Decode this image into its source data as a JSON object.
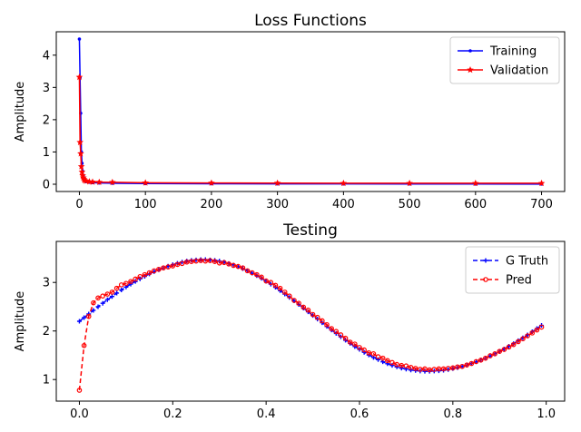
{
  "chart_data": [
    {
      "type": "line",
      "title": "Loss Functions",
      "xlabel": "",
      "ylabel": "Amplitude",
      "xlim": [
        -35,
        735
      ],
      "ylim": [
        -0.225,
        4.725
      ],
      "xticks": [
        0,
        100,
        200,
        300,
        400,
        500,
        600,
        700
      ],
      "yticks": [
        0,
        1,
        2,
        3,
        4
      ],
      "grid": false,
      "legend_position": "top-right",
      "series": [
        {
          "name": "Training",
          "color": "#0000ff",
          "marker": "dot",
          "points": [
            [
              0,
              4.5
            ],
            [
              1,
              3.3
            ],
            [
              2,
              2.2
            ],
            [
              3,
              1.0
            ],
            [
              4,
              0.65
            ],
            [
              5,
              0.4
            ],
            [
              6,
              0.27
            ],
            [
              7,
              0.18
            ],
            [
              8,
              0.12
            ],
            [
              10,
              0.08
            ],
            [
              15,
              0.06
            ],
            [
              20,
              0.05
            ],
            [
              30,
              0.04
            ],
            [
              50,
              0.03
            ],
            [
              100,
              0.02
            ],
            [
              200,
              0.015
            ],
            [
              300,
              0.012
            ],
            [
              400,
              0.01
            ],
            [
              500,
              0.008
            ],
            [
              600,
              0.006
            ],
            [
              700,
              0.005
            ]
          ]
        },
        {
          "name": "Validation",
          "color": "#ff0000",
          "marker": "star",
          "points": [
            [
              0,
              3.32
            ],
            [
              1,
              1.3
            ],
            [
              2,
              0.95
            ],
            [
              3,
              0.55
            ],
            [
              4,
              0.38
            ],
            [
              5,
              0.27
            ],
            [
              6,
              0.2
            ],
            [
              7,
              0.15
            ],
            [
              8,
              0.12
            ],
            [
              10,
              0.1
            ],
            [
              15,
              0.08
            ],
            [
              20,
              0.07
            ],
            [
              30,
              0.065
            ],
            [
              50,
              0.06
            ],
            [
              100,
              0.045
            ],
            [
              200,
              0.04
            ],
            [
              300,
              0.035
            ],
            [
              400,
              0.03
            ],
            [
              500,
              0.03
            ],
            [
              600,
              0.03
            ],
            [
              700,
              0.03
            ]
          ]
        }
      ]
    },
    {
      "type": "line",
      "title": "Testing",
      "xlabel": "",
      "ylabel": "Amplitude",
      "xlim": [
        -0.0495,
        1.0395
      ],
      "ylim": [
        0.555,
        3.845
      ],
      "xticks": [
        0.0,
        0.2,
        0.4,
        0.6,
        0.8,
        1.0
      ],
      "xtick_labels": [
        "0.0",
        "0.2",
        "0.4",
        "0.6",
        "0.8",
        "1.0"
      ],
      "yticks": [
        1,
        2,
        3
      ],
      "grid": false,
      "legend_position": "top-right",
      "series": [
        {
          "name": "G Truth",
          "color": "#0000ff",
          "style": "dashed",
          "marker": "plus",
          "x": [
            0.0,
            0.01,
            0.02,
            0.03,
            0.04,
            0.05,
            0.06,
            0.07,
            0.08,
            0.09,
            0.1,
            0.11,
            0.12,
            0.13,
            0.14,
            0.15,
            0.16,
            0.17,
            0.18,
            0.19,
            0.2,
            0.21,
            0.22,
            0.23,
            0.24,
            0.25,
            0.26,
            0.27,
            0.28,
            0.29,
            0.3,
            0.31,
            0.32,
            0.33,
            0.34,
            0.35,
            0.36,
            0.37,
            0.38,
            0.39,
            0.4,
            0.41,
            0.42,
            0.43,
            0.44,
            0.45,
            0.46,
            0.47,
            0.48,
            0.49,
            0.5,
            0.51,
            0.52,
            0.53,
            0.54,
            0.55,
            0.56,
            0.57,
            0.58,
            0.59,
            0.6,
            0.61,
            0.62,
            0.63,
            0.64,
            0.65,
            0.66,
            0.67,
            0.68,
            0.69,
            0.7,
            0.71,
            0.72,
            0.73,
            0.74,
            0.75,
            0.76,
            0.77,
            0.78,
            0.79,
            0.8,
            0.81,
            0.82,
            0.83,
            0.84,
            0.85,
            0.86,
            0.87,
            0.88,
            0.89,
            0.9,
            0.91,
            0.92,
            0.93,
            0.94,
            0.95,
            0.96,
            0.97,
            0.98,
            0.99
          ],
          "y": [
            2.2,
            2.275,
            2.35,
            2.425,
            2.5,
            2.57,
            2.645,
            2.71,
            2.78,
            2.845,
            2.905,
            2.965,
            3.02,
            3.075,
            3.125,
            3.175,
            3.22,
            3.26,
            3.3,
            3.335,
            3.365,
            3.395,
            3.42,
            3.44,
            3.455,
            3.465,
            3.47,
            3.47,
            3.465,
            3.455,
            3.44,
            3.42,
            3.39,
            3.36,
            3.325,
            3.285,
            3.24,
            3.19,
            3.14,
            3.085,
            3.025,
            2.965,
            2.9,
            2.83,
            2.76,
            2.69,
            2.62,
            2.545,
            2.47,
            2.395,
            2.32,
            2.245,
            2.17,
            2.095,
            2.02,
            1.95,
            1.88,
            1.81,
            1.745,
            1.68,
            1.62,
            1.56,
            1.505,
            1.455,
            1.41,
            1.365,
            1.325,
            1.29,
            1.26,
            1.235,
            1.215,
            1.195,
            1.185,
            1.175,
            1.17,
            1.17,
            1.175,
            1.18,
            1.19,
            1.205,
            1.225,
            1.245,
            1.27,
            1.3,
            1.33,
            1.365,
            1.4,
            1.44,
            1.485,
            1.53,
            1.58,
            1.63,
            1.685,
            1.74,
            1.8,
            1.86,
            1.92,
            1.985,
            2.05,
            2.115
          ]
        },
        {
          "name": "Pred",
          "color": "#ff0000",
          "style": "dashed",
          "marker": "circle",
          "x": [
            0.0,
            0.01,
            0.02,
            0.03,
            0.04,
            0.05,
            0.06,
            0.07,
            0.08,
            0.09,
            0.1,
            0.11,
            0.12,
            0.13,
            0.14,
            0.15,
            0.16,
            0.17,
            0.18,
            0.19,
            0.2,
            0.21,
            0.22,
            0.23,
            0.24,
            0.25,
            0.26,
            0.27,
            0.28,
            0.29,
            0.3,
            0.31,
            0.32,
            0.33,
            0.34,
            0.35,
            0.36,
            0.37,
            0.38,
            0.39,
            0.4,
            0.41,
            0.42,
            0.43,
            0.44,
            0.45,
            0.46,
            0.47,
            0.48,
            0.49,
            0.5,
            0.51,
            0.52,
            0.53,
            0.54,
            0.55,
            0.56,
            0.57,
            0.58,
            0.59,
            0.6,
            0.61,
            0.62,
            0.63,
            0.64,
            0.65,
            0.66,
            0.67,
            0.68,
            0.69,
            0.7,
            0.71,
            0.72,
            0.73,
            0.74,
            0.75,
            0.76,
            0.77,
            0.78,
            0.79,
            0.8,
            0.81,
            0.82,
            0.83,
            0.84,
            0.85,
            0.86,
            0.87,
            0.88,
            0.89,
            0.9,
            0.91,
            0.92,
            0.93,
            0.94,
            0.95,
            0.96,
            0.97,
            0.98,
            0.99
          ],
          "y": [
            0.78,
            1.7,
            2.3,
            2.58,
            2.68,
            2.72,
            2.76,
            2.8,
            2.88,
            2.95,
            2.98,
            3.02,
            3.07,
            3.12,
            3.16,
            3.2,
            3.24,
            3.27,
            3.3,
            3.32,
            3.34,
            3.37,
            3.39,
            3.42,
            3.43,
            3.44,
            3.45,
            3.44,
            3.45,
            3.43,
            3.4,
            3.41,
            3.38,
            3.35,
            3.33,
            3.3,
            3.24,
            3.2,
            3.16,
            3.11,
            3.03,
            3.0,
            2.94,
            2.88,
            2.8,
            2.72,
            2.63,
            2.57,
            2.49,
            2.43,
            2.34,
            2.28,
            2.21,
            2.13,
            2.05,
            1.99,
            1.92,
            1.85,
            1.77,
            1.73,
            1.66,
            1.61,
            1.55,
            1.53,
            1.47,
            1.44,
            1.39,
            1.35,
            1.31,
            1.29,
            1.28,
            1.25,
            1.23,
            1.21,
            1.22,
            1.2,
            1.21,
            1.22,
            1.22,
            1.23,
            1.24,
            1.26,
            1.27,
            1.3,
            1.33,
            1.37,
            1.4,
            1.44,
            1.49,
            1.53,
            1.58,
            1.62,
            1.67,
            1.72,
            1.78,
            1.84,
            1.9,
            1.96,
            2.02,
            2.08
          ]
        }
      ]
    }
  ]
}
